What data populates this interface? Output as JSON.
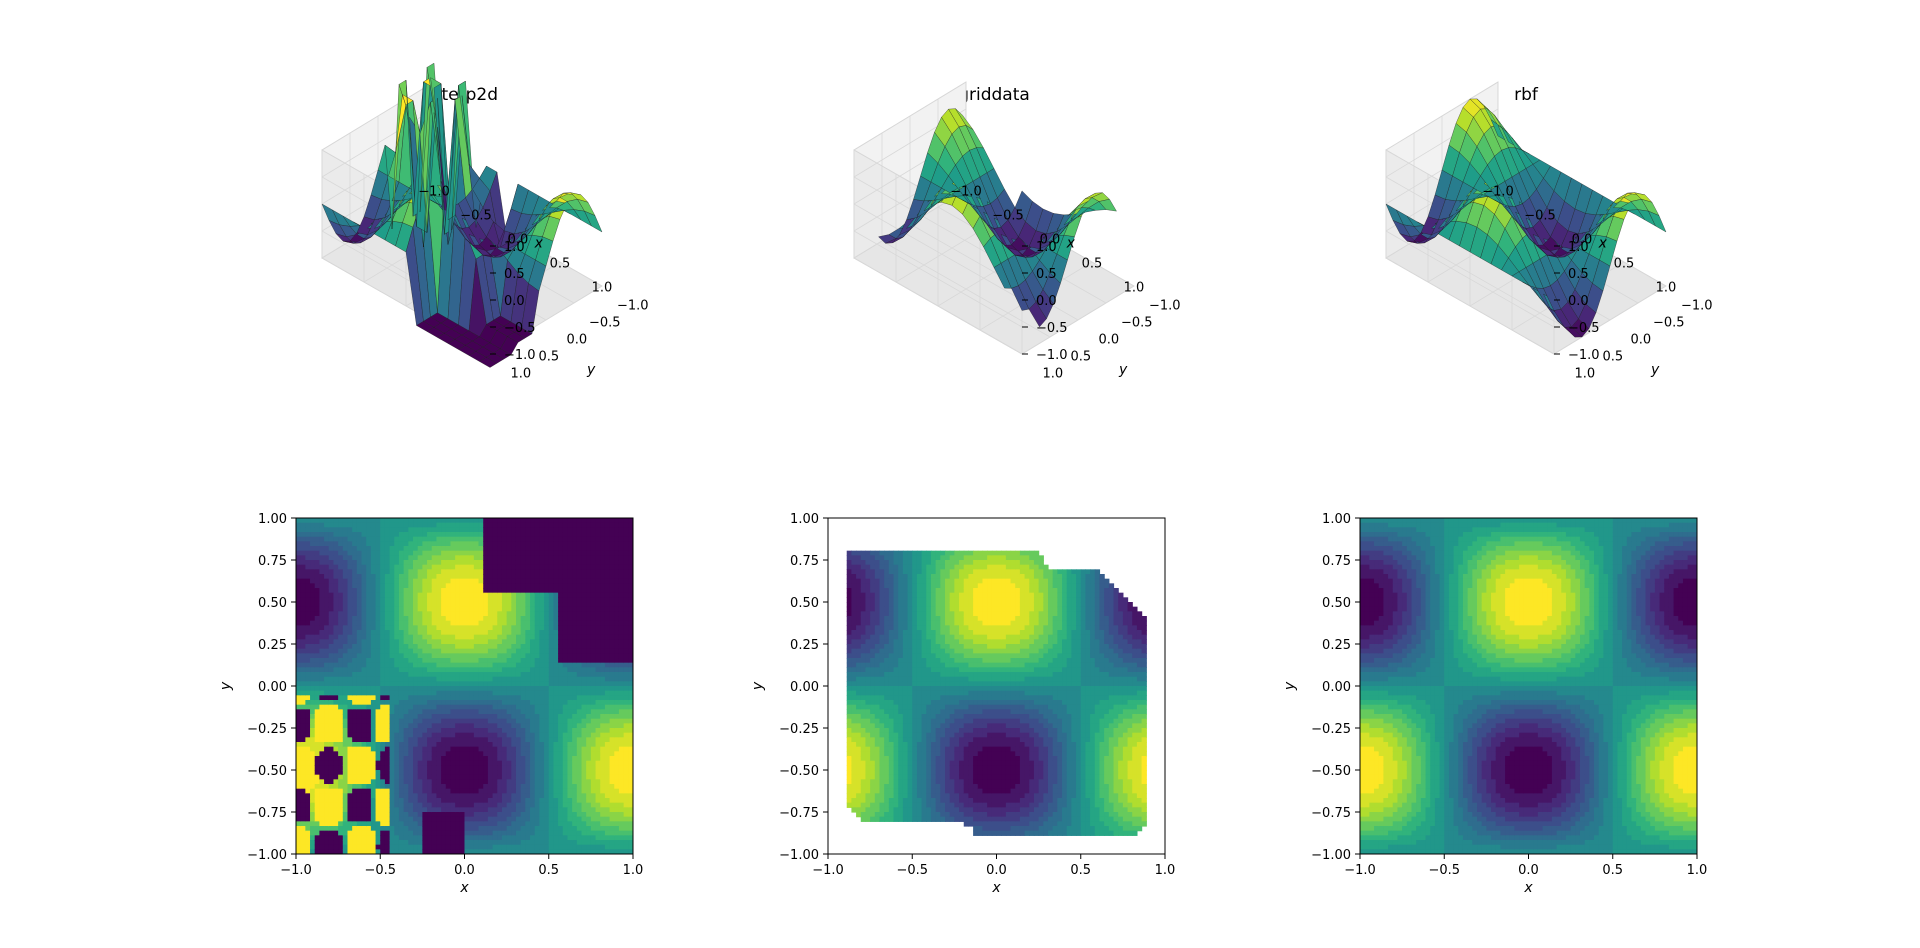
{
  "figure": {
    "description_free": true
  },
  "chart_data": [
    {
      "type": "surface3d",
      "method": "interp2d",
      "title": "interp2d",
      "xlabel": "x",
      "ylabel": "y",
      "xlim": [
        -1,
        1
      ],
      "ylim": [
        -1,
        1
      ],
      "zlim": [
        -1,
        1
      ],
      "xticks": [
        "−1.0",
        "−0.5",
        "0.0",
        "0.5",
        "1.0"
      ],
      "yticks": [
        "−1.0",
        "−0.5",
        "0.0",
        "0.5",
        "1.0"
      ],
      "zticks": [
        "−1.0",
        "−0.5",
        "0.0",
        "0.5",
        "1.0"
      ],
      "function": "z = cos(pi*x) * sin(pi*y) approx",
      "artifacts": true,
      "colormap": "viridis"
    },
    {
      "type": "surface3d",
      "method": "griddata",
      "title": "griddata",
      "xlabel": "x",
      "ylabel": "y",
      "xlim": [
        -1,
        1
      ],
      "ylim": [
        -1,
        1
      ],
      "zlim": [
        -1,
        1
      ],
      "xticks": [
        "−1.0",
        "−0.5",
        "0.0",
        "0.5",
        "1.0"
      ],
      "yticks": [
        "−1.0",
        "−0.5",
        "0.0",
        "0.5",
        "1.0"
      ],
      "zticks": [
        "−1.0",
        "−0.5",
        "0.0",
        "0.5",
        "1.0"
      ],
      "hull": [
        [
          -0.9,
          -0.7
        ],
        [
          -0.8,
          -0.8
        ],
        [
          -0.2,
          -0.8
        ],
        [
          -0.1,
          -0.9
        ],
        [
          0.8,
          -0.9
        ],
        [
          0.9,
          -0.8
        ],
        [
          0.9,
          0.4
        ],
        [
          0.6,
          0.7
        ],
        [
          0.3,
          0.7
        ],
        [
          0.25,
          0.8
        ],
        [
          -0.9,
          0.8
        ]
      ],
      "colormap": "viridis"
    },
    {
      "type": "surface3d",
      "method": "rbf",
      "title": "rbf",
      "xlabel": "x",
      "ylabel": "y",
      "xlim": [
        -1,
        1
      ],
      "ylim": [
        -1,
        1
      ],
      "zlim": [
        -1,
        1
      ],
      "xticks": [
        "−1.0",
        "−0.5",
        "0.0",
        "0.5",
        "1.0"
      ],
      "yticks": [
        "−1.0",
        "−0.5",
        "0.0",
        "0.5",
        "1.0"
      ],
      "zticks": [
        "−1.0",
        "−0.5",
        "0.0",
        "0.5",
        "1.0"
      ],
      "colormap": "viridis"
    },
    {
      "type": "contour",
      "method": "interp2d",
      "xlabel": "x",
      "ylabel": "y",
      "xlim": [
        -1,
        1
      ],
      "ylim": [
        -1,
        1
      ],
      "xticks": [
        "−1.0",
        "−0.5",
        "0.0",
        "0.5",
        "1.0"
      ],
      "yticks": [
        "1.00",
        "0.75",
        "0.50",
        "0.25",
        "0.00",
        "−0.25",
        "−0.50",
        "−0.75",
        "−1.00"
      ],
      "artifacts": true,
      "colormap": "viridis"
    },
    {
      "type": "contour",
      "method": "griddata",
      "xlabel": "x",
      "ylabel": "y",
      "xlim": [
        -1,
        1
      ],
      "ylim": [
        -1,
        1
      ],
      "xticks": [
        "−1.0",
        "−0.5",
        "0.0",
        "0.5",
        "1.0"
      ],
      "yticks": [
        "1.00",
        "0.75",
        "0.50",
        "0.25",
        "0.00",
        "−0.25",
        "−0.50",
        "−0.75",
        "−1.00"
      ],
      "hull": [
        [
          -0.9,
          -0.7
        ],
        [
          -0.8,
          -0.8
        ],
        [
          -0.2,
          -0.8
        ],
        [
          -0.1,
          -0.9
        ],
        [
          0.8,
          -0.9
        ],
        [
          0.9,
          -0.8
        ],
        [
          0.9,
          0.4
        ],
        [
          0.6,
          0.7
        ],
        [
          0.3,
          0.7
        ],
        [
          0.25,
          0.8
        ],
        [
          -0.9,
          0.8
        ]
      ],
      "colormap": "viridis"
    },
    {
      "type": "contour",
      "method": "rbf",
      "xlabel": "x",
      "ylabel": "y",
      "xlim": [
        -1,
        1
      ],
      "ylim": [
        -1,
        1
      ],
      "xticks": [
        "−1.0",
        "−0.5",
        "0.0",
        "0.5",
        "1.0"
      ],
      "yticks": [
        "1.00",
        "0.75",
        "0.50",
        "0.25",
        "0.00",
        "−0.25",
        "−0.50",
        "−0.75",
        "−1.00"
      ],
      "colormap": "viridis"
    }
  ]
}
